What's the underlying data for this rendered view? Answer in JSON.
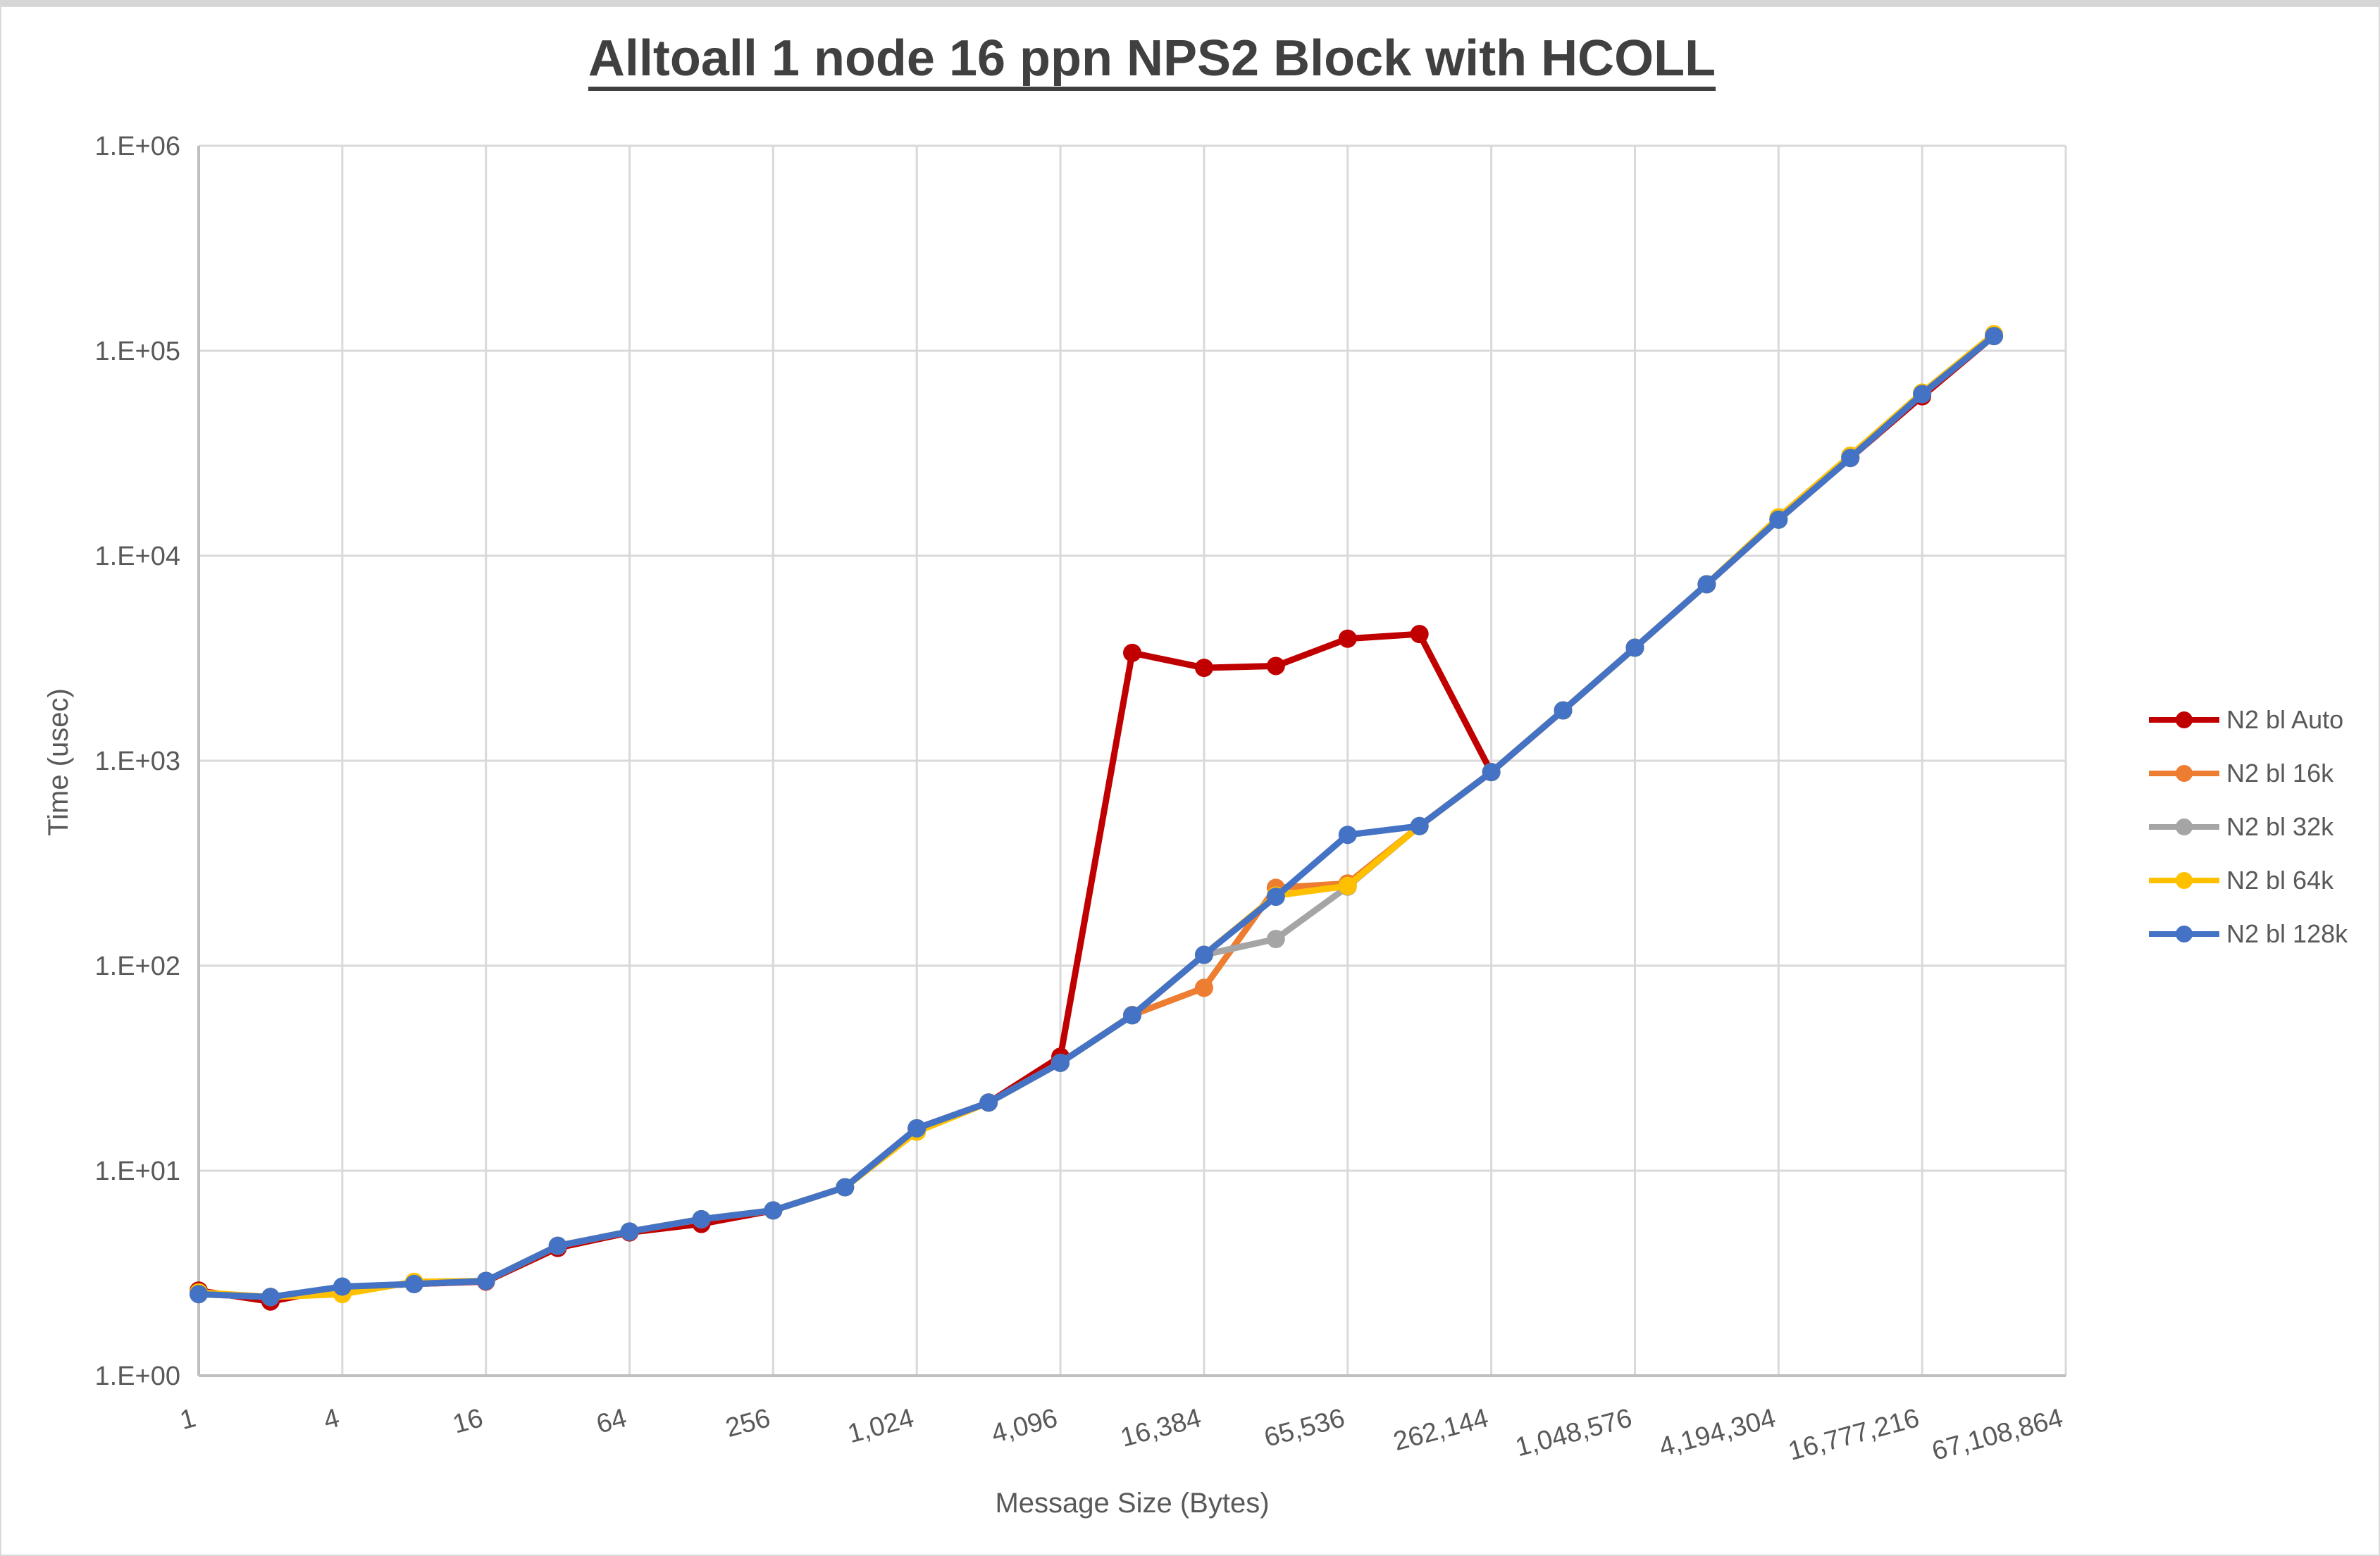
{
  "chart_data": {
    "type": "line",
    "title": "Alltoall 1 node 16 ppn NPS2 Block with HCOLL",
    "xlabel": "Message Size (Bytes)",
    "ylabel": "Time (usec)",
    "x_scale": "log2_category",
    "y_scale": "log10",
    "ylim": [
      1,
      1000000
    ],
    "grid": true,
    "legend_position": "right",
    "y_tick_labels": [
      "1.E+00",
      "1.E+01",
      "1.E+02",
      "1.E+03",
      "1.E+04",
      "1.E+05",
      "1.E+06"
    ],
    "x_tick_labels": [
      "1",
      "4",
      "16",
      "64",
      "256",
      "1,024",
      "4,096",
      "16,384",
      "65,536",
      "262,144",
      "1,048,576",
      "4,194,304",
      "16,777,216",
      "67,108,864"
    ],
    "x_axis_last_category": 67108864,
    "message_sizes": [
      1,
      2,
      4,
      8,
      16,
      32,
      64,
      128,
      256,
      512,
      1024,
      2048,
      4096,
      8192,
      16384,
      32768,
      65536,
      131072,
      262144,
      524288,
      1048576,
      2097152,
      4194304,
      8388608,
      16777216,
      33554432
    ],
    "series": [
      {
        "name": "N2 bl Auto",
        "color": "#C00000",
        "values": [
          2.6,
          2.3,
          2.7,
          2.8,
          2.88,
          4.2,
          5.0,
          5.5,
          6.4,
          8.3,
          16.1,
          21.5,
          36,
          3360,
          2840,
          2900,
          3940,
          4150,
          880,
          1760,
          3560,
          7260,
          15000,
          30000,
          60000,
          118000
        ]
      },
      {
        "name": "N2 bl 16k",
        "color": "#ED7D31",
        "values": [
          2.5,
          2.42,
          2.7,
          2.8,
          2.9,
          4.3,
          5.05,
          5.8,
          6.4,
          8.3,
          16.1,
          21.5,
          33.6,
          57.5,
          78,
          240,
          252,
          480,
          880,
          1760,
          3560,
          7260,
          15000,
          30000,
          61500,
          118000
        ]
      },
      {
        "name": "N2 bl 32k",
        "color": "#A5A5A5",
        "values": [
          2.5,
          2.42,
          2.7,
          2.8,
          2.9,
          4.3,
          5.05,
          5.8,
          6.4,
          8.3,
          16.1,
          21.5,
          33.6,
          57.3,
          113,
          135,
          243,
          480,
          880,
          1760,
          3560,
          7260,
          15000,
          30000,
          61500,
          118000
        ]
      },
      {
        "name": "N2 bl 64k",
        "color": "#FFC000",
        "values": [
          2.55,
          2.42,
          2.5,
          2.87,
          2.9,
          4.3,
          5.05,
          5.8,
          6.4,
          8.3,
          15.5,
          21.5,
          33.6,
          57.3,
          113,
          220,
          245,
          480,
          880,
          1760,
          3560,
          7260,
          15400,
          30800,
          62500,
          120500
        ]
      },
      {
        "name": "N2 bl 128k",
        "color": "#4472C4",
        "values": [
          2.5,
          2.42,
          2.72,
          2.8,
          2.9,
          4.3,
          5.05,
          5.8,
          6.4,
          8.3,
          16.1,
          21.5,
          33.6,
          57.3,
          113,
          217,
          435,
          480,
          880,
          1760,
          3560,
          7260,
          15000,
          30000,
          61500,
          118000
        ]
      }
    ]
  },
  "colors": {
    "gridline": "#D9D9D9",
    "axis_line": "#BFBFBF",
    "tick_text": "#595959",
    "title_text": "#404040",
    "background": "#FFFFFF"
  }
}
